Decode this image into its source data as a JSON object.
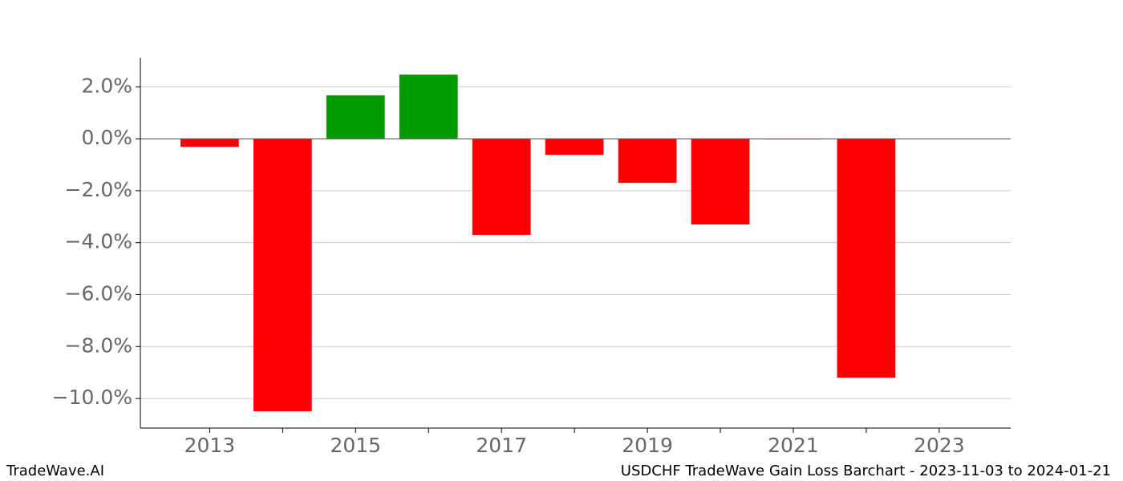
{
  "chart_data": {
    "type": "bar",
    "title": "USDCHF TradeWave Gain Loss Barchart - 2023-11-03 to 2024-01-21",
    "brand": "TradeWave.AI",
    "x": [
      2013,
      2014,
      2015,
      2016,
      2017,
      2018,
      2019,
      2020,
      2021,
      2022
    ],
    "values": [
      -0.31,
      -10.49,
      1.67,
      2.47,
      -3.7,
      -0.62,
      -1.7,
      -3.3,
      -0.02,
      -9.2
    ],
    "positive_color": "#009900",
    "negative_color": "#ff0000",
    "xlim": [
      2012.05,
      2023.98
    ],
    "xticks": [
      2013,
      2015,
      2017,
      2019,
      2021,
      2023
    ],
    "xminor_ticks": [
      2014,
      2016,
      2018,
      2020,
      2022
    ],
    "ylim": [
      -11.14,
      3.12
    ],
    "yticks": [
      {
        "value": 2,
        "label": "2.0%"
      },
      {
        "value": 0,
        "label": "0.0%"
      },
      {
        "value": -2,
        "label": "−2.0%"
      },
      {
        "value": -4,
        "label": "−4.0%"
      },
      {
        "value": -6,
        "label": "−6.0%"
      },
      {
        "value": -8,
        "label": "−8.0%"
      },
      {
        "value": -10,
        "label": "−10.0%"
      }
    ],
    "grid": true
  }
}
